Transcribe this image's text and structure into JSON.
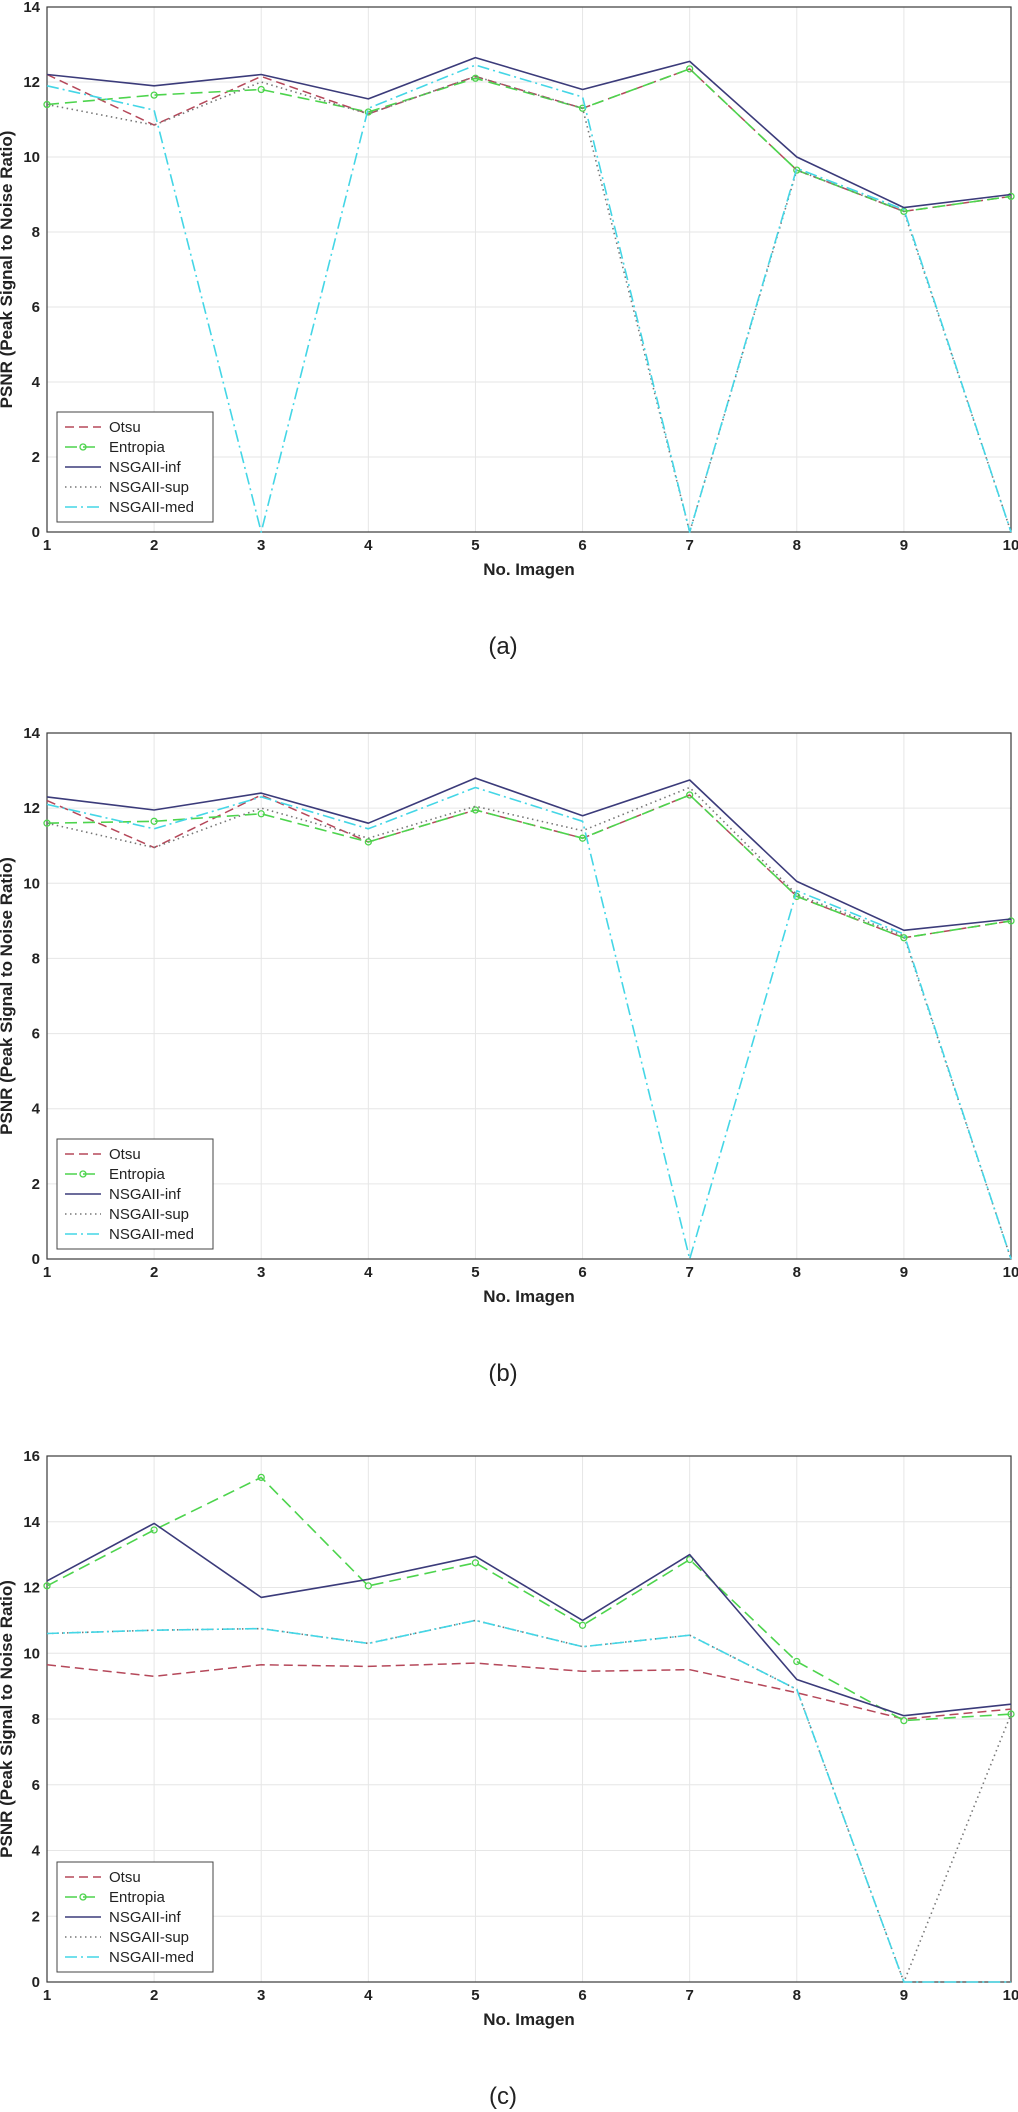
{
  "chart_data": [
    {
      "type": "line",
      "caption": "(a)",
      "xlabel": "No. Imagen",
      "ylabel": "PSNR (Peak Signal to Noise Ratio)",
      "x": [
        1,
        2,
        3,
        4,
        5,
        6,
        7,
        8,
        9,
        10
      ],
      "xlim": [
        1,
        10
      ],
      "ylim": [
        0,
        14
      ],
      "yticks": [
        0,
        2,
        4,
        6,
        8,
        10,
        12,
        14
      ],
      "grid": true,
      "legend_position": "bottom-left",
      "series": [
        {
          "name": "Otsu",
          "color": "#b5485a",
          "style": "dashed",
          "values": [
            12.2,
            10.85,
            12.15,
            11.15,
            12.15,
            11.3,
            12.35,
            9.65,
            8.55,
            8.95
          ]
        },
        {
          "name": "Entropia",
          "color": "#4dd44d",
          "style": "dashed-circle",
          "values": [
            11.4,
            11.65,
            11.8,
            11.2,
            12.1,
            11.3,
            12.35,
            9.65,
            8.55,
            8.95
          ]
        },
        {
          "name": "NSGAII-inf",
          "color": "#3b3b7a",
          "style": "solid",
          "values": [
            12.2,
            11.9,
            12.2,
            11.55,
            12.65,
            11.8,
            12.55,
            10.0,
            8.65,
            9.0
          ]
        },
        {
          "name": "NSGAII-sup",
          "color": "#777777",
          "style": "dotted",
          "values": [
            11.4,
            10.85,
            12.0,
            11.15,
            12.15,
            11.3,
            0.0,
            9.65,
            8.55,
            0.0
          ]
        },
        {
          "name": "NSGAII-med",
          "color": "#44d6e6",
          "style": "dashdot",
          "values": [
            11.9,
            11.25,
            0.0,
            11.3,
            12.45,
            11.6,
            0.0,
            9.7,
            8.6,
            0.0
          ]
        }
      ]
    },
    {
      "type": "line",
      "caption": "(b)",
      "xlabel": "No. Imagen",
      "ylabel": "PSNR (Peak Signal to Noise Ratio)",
      "x": [
        1,
        2,
        3,
        4,
        5,
        6,
        7,
        8,
        9,
        10
      ],
      "xlim": [
        1,
        10
      ],
      "ylim": [
        0,
        14
      ],
      "yticks": [
        0,
        2,
        4,
        6,
        8,
        10,
        12,
        14
      ],
      "grid": true,
      "legend_position": "bottom-left",
      "series": [
        {
          "name": "Otsu",
          "color": "#b5485a",
          "style": "dashed",
          "values": [
            12.2,
            10.95,
            12.35,
            11.1,
            11.95,
            11.2,
            12.35,
            9.65,
            8.55,
            9.0
          ]
        },
        {
          "name": "Entropia",
          "color": "#4dd44d",
          "style": "dashed-circle",
          "values": [
            11.6,
            11.65,
            11.85,
            11.1,
            11.95,
            11.2,
            12.35,
            9.65,
            8.55,
            9.0
          ]
        },
        {
          "name": "NSGAII-inf",
          "color": "#3b3b7a",
          "style": "solid",
          "values": [
            12.3,
            11.95,
            12.4,
            11.6,
            12.8,
            11.8,
            12.75,
            10.05,
            8.75,
            9.05
          ]
        },
        {
          "name": "NSGAII-sup",
          "color": "#777777",
          "style": "dotted",
          "values": [
            11.6,
            10.95,
            12.0,
            11.2,
            12.05,
            11.4,
            12.55,
            9.7,
            8.6,
            0.0
          ]
        },
        {
          "name": "NSGAII-med",
          "color": "#44d6e6",
          "style": "dashdot",
          "values": [
            12.1,
            11.45,
            12.3,
            11.45,
            12.55,
            11.65,
            0.0,
            9.8,
            8.65,
            0.0
          ]
        }
      ]
    },
    {
      "type": "line",
      "caption": "(c)",
      "xlabel": "No. Imagen",
      "ylabel": "PSNR (Peak Signal to Noise Ratio)",
      "x": [
        1,
        2,
        3,
        4,
        5,
        6,
        7,
        8,
        9,
        10
      ],
      "xlim": [
        1,
        10
      ],
      "ylim": [
        0,
        16
      ],
      "yticks": [
        0,
        2,
        4,
        6,
        8,
        10,
        12,
        14,
        16
      ],
      "grid": true,
      "legend_position": "bottom-left",
      "series": [
        {
          "name": "Otsu",
          "color": "#b5485a",
          "style": "dashed",
          "values": [
            9.65,
            9.3,
            9.65,
            9.6,
            9.7,
            9.45,
            9.5,
            8.8,
            8.0,
            8.3
          ]
        },
        {
          "name": "Entropia",
          "color": "#4dd44d",
          "style": "dashed-circle",
          "values": [
            12.05,
            13.75,
            15.35,
            12.05,
            12.75,
            10.85,
            12.85,
            9.75,
            7.95,
            8.15
          ]
        },
        {
          "name": "NSGAII-inf",
          "color": "#3b3b7a",
          "style": "solid",
          "values": [
            12.2,
            13.95,
            11.7,
            12.25,
            12.95,
            11.0,
            13.0,
            9.2,
            8.1,
            8.45
          ]
        },
        {
          "name": "NSGAII-sup",
          "color": "#777777",
          "style": "dotted",
          "values": [
            10.6,
            10.7,
            10.75,
            10.3,
            11.0,
            10.2,
            10.55,
            8.9,
            0.0,
            8.15
          ]
        },
        {
          "name": "NSGAII-med",
          "color": "#44d6e6",
          "style": "dashdot",
          "values": [
            10.6,
            10.7,
            10.75,
            10.3,
            11.0,
            10.2,
            10.55,
            8.9,
            0.0,
            0.0
          ]
        }
      ]
    }
  ]
}
